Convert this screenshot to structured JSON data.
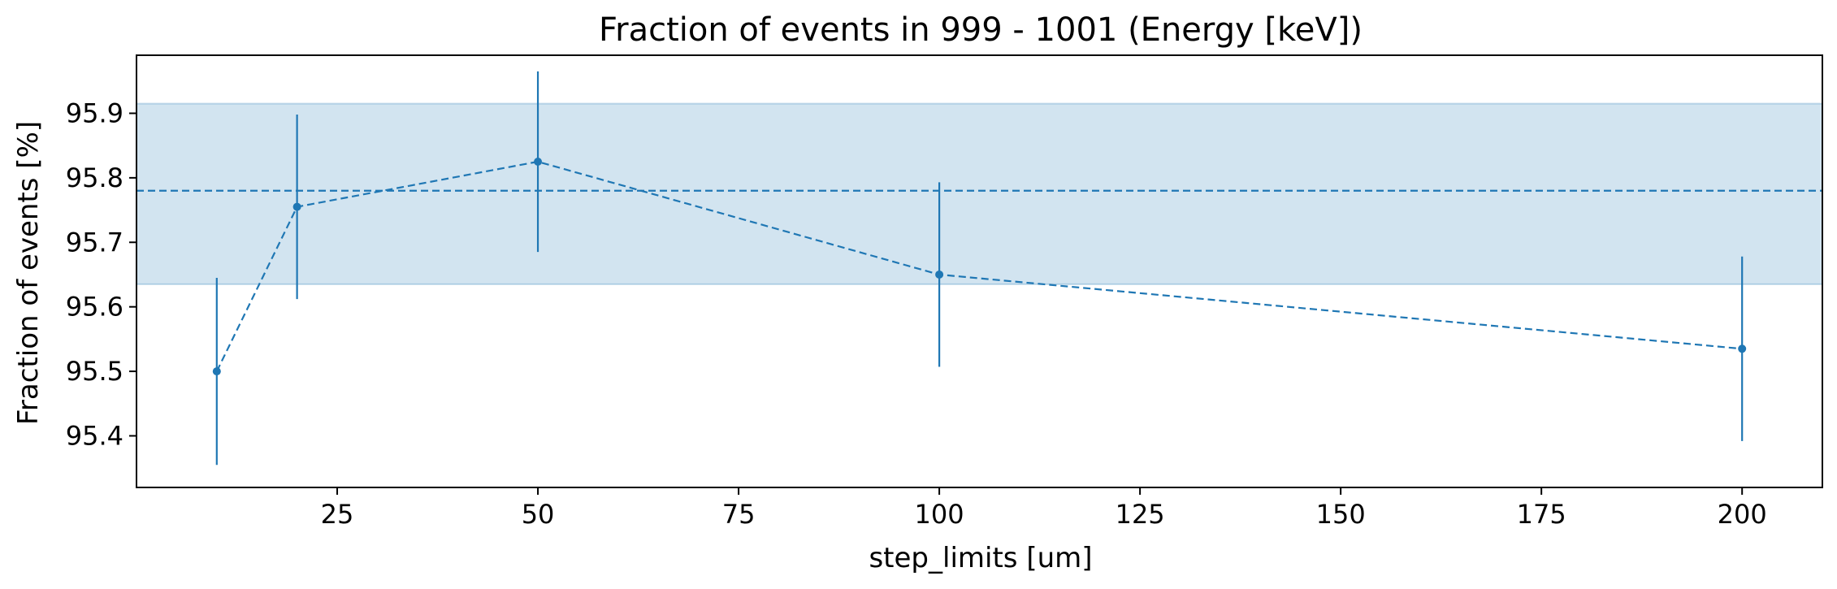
{
  "chart_data": {
    "type": "line",
    "title": "Fraction of events in 999 - 1001 (Energy [keV])",
    "xlabel": "step_limits [um]",
    "ylabel": "Fraction of events [%]",
    "xlim": [
      0,
      210
    ],
    "ylim": [
      95.32,
      95.99
    ],
    "xticks": [
      25,
      50,
      75,
      100,
      125,
      150,
      175,
      200
    ],
    "yticks": [
      95.4,
      95.5,
      95.6,
      95.7,
      95.8,
      95.9
    ],
    "grid": false,
    "legend": "none",
    "color": "#1f77b4",
    "band_color": "#1f77b4",
    "series": [
      {
        "x": [
          10,
          20,
          50,
          100,
          200
        ],
        "y": [
          95.5,
          95.755,
          95.825,
          95.65,
          95.535
        ],
        "yerr": [
          0.145,
          0.143,
          0.14,
          0.143,
          0.143
        ]
      }
    ],
    "reference_line": {
      "y": 95.78,
      "style": "dashed"
    },
    "reference_band": {
      "y_low": 95.635,
      "y_high": 95.915
    }
  }
}
